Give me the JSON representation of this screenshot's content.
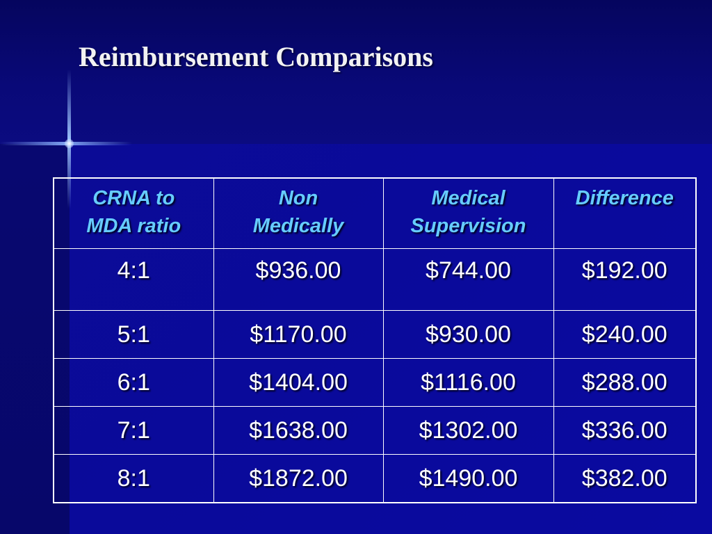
{
  "slide": {
    "title": "Reimbursement Comparisons"
  },
  "table": {
    "headers": [
      [
        "CRNA to",
        "MDA ratio"
      ],
      [
        "Non",
        "Medically"
      ],
      [
        "Medical",
        "Supervision"
      ],
      [
        "Difference",
        ""
      ]
    ],
    "rows": [
      [
        "4:1",
        "$936.00",
        "$744.00",
        "$192.00"
      ],
      [
        "5:1",
        "$1170.00",
        "$930.00",
        "$240.00"
      ],
      [
        "6:1",
        "$1404.00",
        "$1116.00",
        "$288.00"
      ],
      [
        "7:1",
        "$1638.00",
        "$1302.00",
        "$336.00"
      ],
      [
        "8:1",
        "$1872.00",
        "$1490.00",
        "$382.00"
      ]
    ]
  },
  "colors": {
    "background": "#0a0a8a",
    "header_text": "#66ccff",
    "cell_text": "#ffffff",
    "border": "#ffffff"
  }
}
